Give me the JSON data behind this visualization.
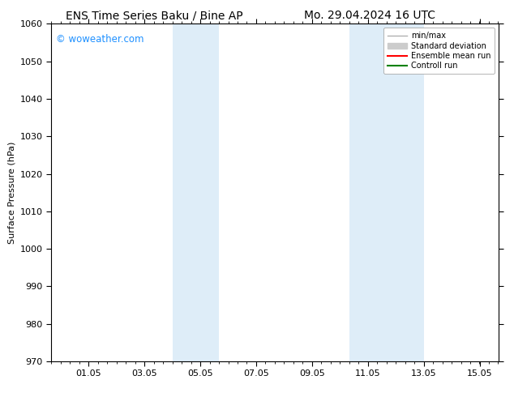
{
  "title_left": "ENS Time Series Baku / Bine AP",
  "title_right": "Mo. 29.04.2024 16 UTC",
  "ylabel": "Surface Pressure (hPa)",
  "ylim": [
    970,
    1060
  ],
  "yticks": [
    970,
    980,
    990,
    1000,
    1010,
    1020,
    1030,
    1040,
    1050,
    1060
  ],
  "xlim": [
    0.0,
    16.0
  ],
  "xtick_labels": [
    "01.05",
    "03.05",
    "05.05",
    "07.05",
    "09.05",
    "11.05",
    "13.05",
    "15.05"
  ],
  "xtick_positions": [
    1.333,
    3.333,
    5.333,
    7.333,
    9.333,
    11.333,
    13.333,
    15.333
  ],
  "shaded_bands": [
    {
      "x_start": 4.333,
      "x_end": 6.0,
      "color": "#deedf8"
    },
    {
      "x_start": 10.667,
      "x_end": 13.333,
      "color": "#deedf8"
    }
  ],
  "watermark_text": "© woweather.com",
  "watermark_color": "#1e90ff",
  "legend_items": [
    {
      "label": "min/max",
      "color": "#b0b0b0",
      "linestyle": "-",
      "linewidth": 1.0,
      "type": "line"
    },
    {
      "label": "Standard deviation",
      "color": "#cccccc",
      "linestyle": "-",
      "linewidth": 5,
      "type": "patch"
    },
    {
      "label": "Ensemble mean run",
      "color": "#ff0000",
      "linestyle": "-",
      "linewidth": 1.5,
      "type": "line"
    },
    {
      "label": "Controll run",
      "color": "#008000",
      "linestyle": "-",
      "linewidth": 1.5,
      "type": "line"
    }
  ],
  "background_color": "#ffffff",
  "title_fontsize": 10,
  "axis_label_fontsize": 8,
  "tick_fontsize": 8
}
